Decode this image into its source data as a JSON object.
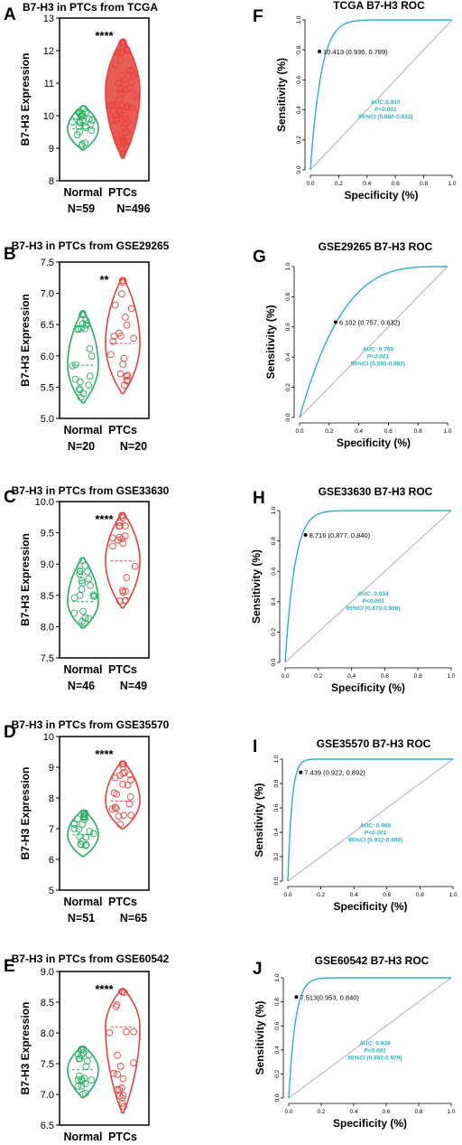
{
  "colors": {
    "normal": "#27ae60",
    "ptc": "#e8413c",
    "roc": "#2bb3c0",
    "diagonal": "#b0b0b0"
  },
  "chart_data": [
    {
      "panel": "A",
      "type": "violin",
      "title": "B7-H3 in PTCs from TCGA",
      "ylabel": "B7-H3 Expression",
      "ylim": [
        8,
        13
      ],
      "yticks": [
        8,
        9,
        10,
        11,
        12,
        13
      ],
      "significance": "****",
      "groups": [
        {
          "name": "Normal",
          "n_label": "N=59",
          "median": 9.6,
          "min": 8.95,
          "max": 10.3,
          "color": "normal"
        },
        {
          "name": "PTCs",
          "n_label": "N=496",
          "median": 10.75,
          "min": 8.7,
          "max": 12.35,
          "color": "ptc"
        }
      ]
    },
    {
      "panel": "B",
      "type": "violin",
      "title": "B7-H3 in PTCs from GSE29265",
      "ylabel": "B7-H3 Expression",
      "ylim": [
        5.0,
        7.5
      ],
      "yticks": [
        5.0,
        5.5,
        6.0,
        6.5,
        7.0,
        7.5
      ],
      "significance": "**",
      "groups": [
        {
          "name": "Normal",
          "n_label": "N=20",
          "median": 5.85,
          "min": 5.25,
          "max": 6.72,
          "color": "normal"
        },
        {
          "name": "PTCs",
          "n_label": "N=20",
          "median": 6.2,
          "min": 5.4,
          "max": 7.25,
          "color": "ptc"
        }
      ]
    },
    {
      "panel": "C",
      "type": "violin",
      "title": "B7-H3 in PTCs from GSE33630",
      "ylabel": "B7-H3 Expression",
      "ylim": [
        7.5,
        10.0
      ],
      "yticks": [
        7.5,
        8.0,
        8.5,
        9.0,
        9.5,
        10.0
      ],
      "significance": "****",
      "groups": [
        {
          "name": "Normal",
          "n_label": "N=46",
          "median": 8.4,
          "min": 7.98,
          "max": 9.1,
          "color": "normal"
        },
        {
          "name": "PTCs",
          "n_label": "N=49",
          "median": 9.05,
          "min": 8.3,
          "max": 9.82,
          "color": "ptc"
        }
      ]
    },
    {
      "panel": "D",
      "type": "violin",
      "title": "B7-H3 in PTCs from GSE35570",
      "ylabel": "B7-H3 Expression",
      "ylim": [
        5,
        10
      ],
      "yticks": [
        5,
        6,
        7,
        8,
        9,
        10
      ],
      "significance": "****",
      "groups": [
        {
          "name": "Normal",
          "n_label": "N=51",
          "median": 6.8,
          "min": 6.1,
          "max": 7.6,
          "color": "normal"
        },
        {
          "name": "PTCs",
          "n_label": "N=65",
          "median": 7.9,
          "min": 7.0,
          "max": 9.2,
          "color": "ptc"
        }
      ]
    },
    {
      "panel": "E",
      "type": "violin",
      "title": "B7-H3 in PTCs from GSE60542",
      "ylabel": "B7-H3 Expression",
      "ylim": [
        6.5,
        9.0
      ],
      "yticks": [
        6.5,
        7.0,
        7.5,
        8.0,
        8.5,
        9.0
      ],
      "significance": "****",
      "groups": [
        {
          "name": "Normal",
          "n_label": "N=23",
          "median": 7.4,
          "min": 6.95,
          "max": 7.78,
          "color": "normal"
        },
        {
          "name": "PTCs",
          "n_label": "N=38",
          "median": 8.1,
          "min": 6.7,
          "max": 8.72,
          "color": "ptc"
        }
      ]
    },
    {
      "panel": "F",
      "type": "line",
      "title": "TCGA B7-H3 ROC",
      "xlabel": "Specificity (%)",
      "ylabel": "Sensitivity (%)",
      "xlim": [
        0,
        1
      ],
      "ylim": [
        0,
        1
      ],
      "ticks": [
        0.0,
        0.2,
        0.4,
        0.6,
        0.8,
        1.0
      ],
      "auc": 0.91,
      "auc_text": "AUC:0.910",
      "p_text": "P<0.001",
      "ci_text": "95%CI (0.880-0.932)",
      "cutoff": {
        "label": "10.413 (0.936, 0.789)",
        "specificity": 0.936,
        "sensitivity": 0.789
      }
    },
    {
      "panel": "G",
      "type": "line",
      "title": "GSE29265 B7-H3 ROC",
      "xlabel": "Specificity (%)",
      "ylabel": "Sensitivity (%)",
      "xlim": [
        0,
        1
      ],
      "ylim": [
        0,
        1
      ],
      "ticks": [
        0.0,
        0.2,
        0.4,
        0.6,
        0.8,
        1.0
      ],
      "auc": 0.76,
      "auc_text": "AUC: 0.760",
      "p_text": "P<0.001",
      "ci_text": "95%CI (0.590-0.882)",
      "cutoff": {
        "label": "6.102 (0.757, 0.632)",
        "specificity": 0.757,
        "sensitivity": 0.632
      }
    },
    {
      "panel": "H",
      "type": "line",
      "title": "GSE33630 B7-H3 ROC",
      "xlabel": "Specificity (%)",
      "ylabel": "Sensitivity (%)",
      "xlim": [
        0,
        1
      ],
      "ylim": [
        0,
        1
      ],
      "ticks": [
        0.0,
        0.2,
        0.4,
        0.6,
        0.8,
        1.0
      ],
      "auc": 0.934,
      "auc_text": "AUC: 0.934",
      "p_text": "P<0.001",
      "ci_text": "95%CI (0.873-0.966)",
      "cutoff": {
        "label": "8.716 (0.877, 0.840)",
        "specificity": 0.877,
        "sensitivity": 0.84
      }
    },
    {
      "panel": "I",
      "type": "line",
      "title": "GSE35570 B7-H3 ROC",
      "xlabel": "Specificity (%)",
      "ylabel": "Sensitivity (%)",
      "xlim": [
        0,
        1
      ],
      "ylim": [
        0,
        1
      ],
      "ticks": [
        0.0,
        0.2,
        0.4,
        0.6,
        0.8,
        1.0
      ],
      "auc": 0.968,
      "auc_text": "AUC: 0.968",
      "p_text": "P<0.001",
      "ci_text": "95%CI (0.932-0.988)",
      "cutoff": {
        "label": "7.439 (0.922, 0.892)",
        "specificity": 0.922,
        "sensitivity": 0.892
      }
    },
    {
      "panel": "J",
      "type": "line",
      "title": "GSE60542 B7-H3 ROC",
      "xlabel": "Specificity (%)",
      "ylabel": "Sensitivity (%)",
      "xlim": [
        0,
        1
      ],
      "ylim": [
        0,
        1
      ],
      "ticks": [
        0.0,
        0.2,
        0.4,
        0.6,
        0.8,
        1.0
      ],
      "auc": 0.938,
      "auc_text": "AUC: 0.938",
      "p_text": "P<0.001",
      "ci_text": "95%CI (0.862-0.979)",
      "cutoff": {
        "label": "7.513(0.953, 0.840)",
        "specificity": 0.953,
        "sensitivity": 0.84
      }
    }
  ]
}
